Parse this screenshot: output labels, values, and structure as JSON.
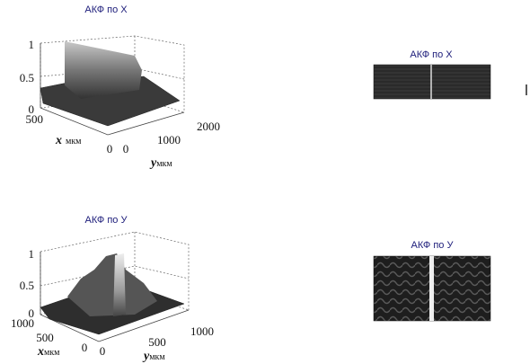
{
  "panels": [
    {
      "title": "АКФ по X",
      "z_ticks": [
        "1",
        "0.5",
        "0"
      ],
      "x_ticks": [
        "500",
        "0"
      ],
      "y_ticks": [
        "0",
        "1000",
        "2000"
      ],
      "x_label": {
        "symbol": "x",
        "unit": "мкм"
      },
      "y_label": {
        "symbol": "y",
        "unit": "мкм"
      }
    },
    {
      "title": "АКФ по У",
      "z_ticks": [
        "1",
        "0.5",
        "0"
      ],
      "x_ticks": [
        "1000",
        "500",
        "0"
      ],
      "y_ticks": [
        "0",
        "500",
        "1000"
      ],
      "x_label": {
        "symbol": "x",
        "unit": "мкм"
      },
      "y_label": {
        "symbol": "y",
        "unit": "мкм"
      }
    }
  ],
  "images": [
    {
      "title": "АКФ по X"
    },
    {
      "title": "АКФ по У"
    }
  ]
}
